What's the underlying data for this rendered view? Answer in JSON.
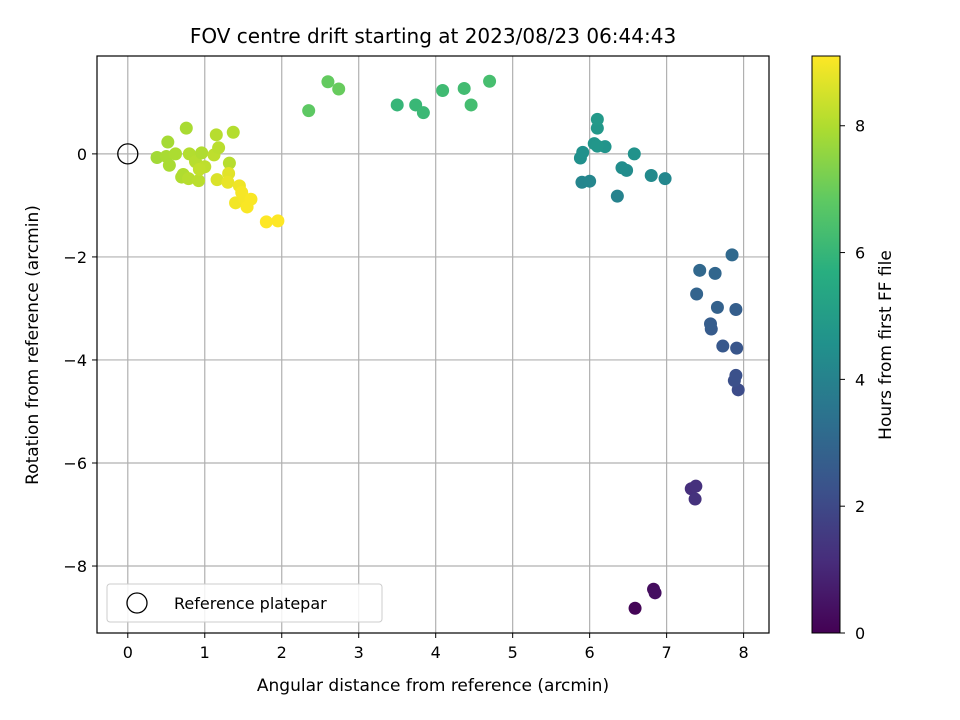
{
  "chart_data": {
    "type": "scatter",
    "title": "FOV centre drift starting at 2023/08/23 06:44:43",
    "xlabel": "Angular distance from reference (arcmin)",
    "ylabel": "Rotation from reference (arcmin)",
    "xlim": [
      -0.4,
      8.33
    ],
    "ylim": [
      -9.3,
      1.9
    ],
    "xticks": [
      0,
      1,
      2,
      3,
      4,
      5,
      6,
      7,
      8
    ],
    "yticks": [
      -8,
      -6,
      -4,
      -2,
      0
    ],
    "grid": true,
    "legend": {
      "location": "lower-left",
      "entries": [
        {
          "label": "Reference platepar",
          "marker": "open-circle"
        }
      ]
    },
    "reference_point": {
      "x": 0,
      "y": 0
    },
    "colorbar": {
      "label": "Hours from first FF file",
      "colormap": "viridis",
      "range": [
        0,
        9.1
      ],
      "ticks": [
        0,
        2,
        4,
        6,
        8
      ]
    },
    "points": [
      {
        "x": 6.59,
        "y": -8.82,
        "c": 0.1
      },
      {
        "x": 6.83,
        "y": -8.45,
        "c": 0.3
      },
      {
        "x": 6.85,
        "y": -8.52,
        "c": 0.35
      },
      {
        "x": 7.32,
        "y": -6.5,
        "c": 1.2
      },
      {
        "x": 7.38,
        "y": -6.45,
        "c": 1.25
      },
      {
        "x": 7.37,
        "y": -6.7,
        "c": 1.3
      },
      {
        "x": 7.93,
        "y": -4.58,
        "c": 2.1
      },
      {
        "x": 7.88,
        "y": -4.4,
        "c": 2.2
      },
      {
        "x": 7.9,
        "y": -4.3,
        "c": 2.25
      },
      {
        "x": 7.91,
        "y": -3.77,
        "c": 2.4
      },
      {
        "x": 7.73,
        "y": -3.73,
        "c": 2.5
      },
      {
        "x": 7.58,
        "y": -3.4,
        "c": 2.6
      },
      {
        "x": 7.57,
        "y": -3.3,
        "c": 2.65
      },
      {
        "x": 7.9,
        "y": -3.02,
        "c": 2.7
      },
      {
        "x": 7.66,
        "y": -2.98,
        "c": 2.8
      },
      {
        "x": 7.39,
        "y": -2.72,
        "c": 2.9
      },
      {
        "x": 7.63,
        "y": -2.32,
        "c": 3.0
      },
      {
        "x": 7.43,
        "y": -2.26,
        "c": 3.05
      },
      {
        "x": 7.85,
        "y": -1.96,
        "c": 3.1
      },
      {
        "x": 6.36,
        "y": -0.82,
        "c": 4.0
      },
      {
        "x": 5.9,
        "y": -0.55,
        "c": 4.1
      },
      {
        "x": 6.0,
        "y": -0.53,
        "c": 4.15
      },
      {
        "x": 6.98,
        "y": -0.48,
        "c": 4.2
      },
      {
        "x": 6.8,
        "y": -0.42,
        "c": 4.3
      },
      {
        "x": 6.48,
        "y": -0.32,
        "c": 4.35
      },
      {
        "x": 6.42,
        "y": -0.27,
        "c": 4.4
      },
      {
        "x": 5.88,
        "y": -0.08,
        "c": 4.5
      },
      {
        "x": 5.91,
        "y": 0.03,
        "c": 4.55
      },
      {
        "x": 6.58,
        "y": 0.0,
        "c": 4.6
      },
      {
        "x": 6.2,
        "y": 0.14,
        "c": 4.65
      },
      {
        "x": 6.06,
        "y": 0.2,
        "c": 4.7
      },
      {
        "x": 6.1,
        "y": 0.15,
        "c": 4.75
      },
      {
        "x": 6.1,
        "y": 0.5,
        "c": 4.8
      },
      {
        "x": 6.1,
        "y": 0.67,
        "c": 4.85
      },
      {
        "x": 3.5,
        "y": 0.95,
        "c": 6.0
      },
      {
        "x": 3.74,
        "y": 0.95,
        "c": 6.05
      },
      {
        "x": 3.84,
        "y": 0.8,
        "c": 6.1
      },
      {
        "x": 4.09,
        "y": 1.23,
        "c": 6.2
      },
      {
        "x": 4.37,
        "y": 1.27,
        "c": 6.25
      },
      {
        "x": 4.46,
        "y": 0.95,
        "c": 6.3
      },
      {
        "x": 4.7,
        "y": 1.41,
        "c": 6.35
      },
      {
        "x": 2.35,
        "y": 0.84,
        "c": 6.8
      },
      {
        "x": 2.6,
        "y": 1.4,
        "c": 6.9
      },
      {
        "x": 2.74,
        "y": 1.26,
        "c": 6.95
      },
      {
        "x": 0.38,
        "y": -0.07,
        "c": 7.8
      },
      {
        "x": 0.52,
        "y": 0.23,
        "c": 7.85
      },
      {
        "x": 0.5,
        "y": -0.05,
        "c": 7.9
      },
      {
        "x": 0.54,
        "y": -0.22,
        "c": 7.9
      },
      {
        "x": 0.62,
        "y": 0.0,
        "c": 7.95
      },
      {
        "x": 0.72,
        "y": -0.4,
        "c": 8.0
      },
      {
        "x": 0.7,
        "y": -0.45,
        "c": 8.0
      },
      {
        "x": 0.76,
        "y": 0.5,
        "c": 7.9
      },
      {
        "x": 0.8,
        "y": 0.0,
        "c": 8.05
      },
      {
        "x": 0.79,
        "y": -0.48,
        "c": 8.1
      },
      {
        "x": 0.88,
        "y": -0.15,
        "c": 8.1
      },
      {
        "x": 0.92,
        "y": -0.52,
        "c": 8.15
      },
      {
        "x": 0.96,
        "y": 0.02,
        "c": 8.0
      },
      {
        "x": 1.0,
        "y": -0.25,
        "c": 8.2
      },
      {
        "x": 0.93,
        "y": -0.3,
        "c": 8.25
      },
      {
        "x": 1.12,
        "y": -0.02,
        "c": 8.2
      },
      {
        "x": 1.15,
        "y": 0.37,
        "c": 8.1
      },
      {
        "x": 1.18,
        "y": 0.12,
        "c": 8.15
      },
      {
        "x": 1.16,
        "y": -0.5,
        "c": 8.6
      },
      {
        "x": 1.32,
        "y": -0.18,
        "c": 8.1
      },
      {
        "x": 1.37,
        "y": 0.42,
        "c": 8.05
      },
      {
        "x": 1.31,
        "y": -0.38,
        "c": 8.7
      },
      {
        "x": 1.3,
        "y": -0.55,
        "c": 8.8
      },
      {
        "x": 1.45,
        "y": -0.62,
        "c": 8.9
      },
      {
        "x": 1.4,
        "y": -0.95,
        "c": 8.95
      },
      {
        "x": 1.48,
        "y": -0.75,
        "c": 9.0
      },
      {
        "x": 1.52,
        "y": -0.88,
        "c": 9.0
      },
      {
        "x": 1.55,
        "y": -1.03,
        "c": 9.05
      },
      {
        "x": 1.6,
        "y": -0.88,
        "c": 9.05
      },
      {
        "x": 1.8,
        "y": -1.32,
        "c": 9.1
      },
      {
        "x": 1.95,
        "y": -1.3,
        "c": 9.1
      }
    ]
  }
}
